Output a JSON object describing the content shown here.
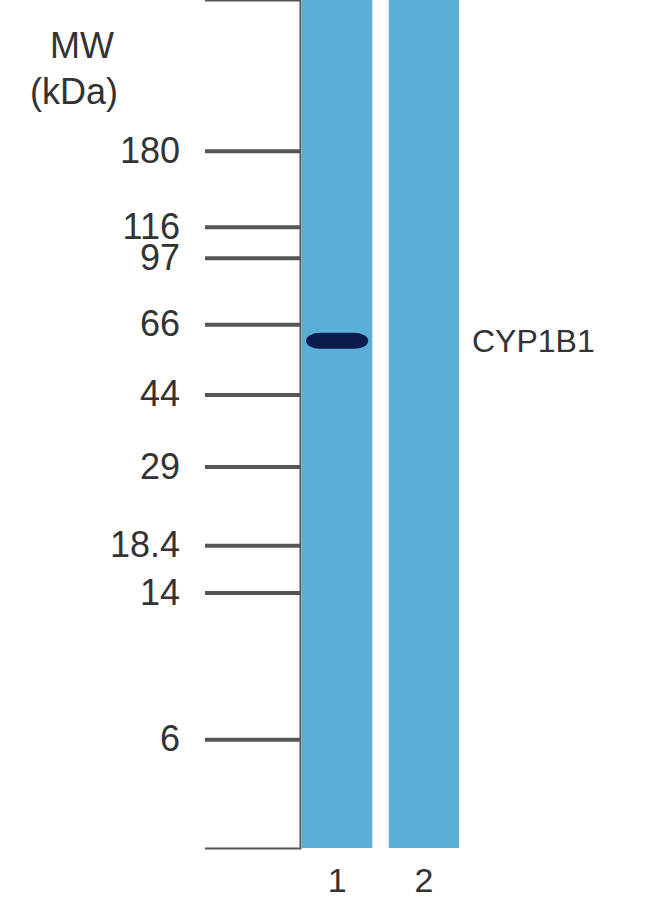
{
  "chart_data": {
    "type": "blot",
    "y_label": [
      "MW",
      "(kDa)"
    ],
    "categories": [
      "1",
      "2"
    ],
    "series": [
      {
        "name": "CYP1B1",
        "color": "#0b1d4d",
        "values": [
          60,
          null
        ]
      }
    ],
    "log": "y",
    "ylim": [
      3.2,
      430
    ],
    "yticks": [
      180,
      116,
      97,
      66,
      44,
      29,
      18.4,
      14,
      6
    ]
  }
}
